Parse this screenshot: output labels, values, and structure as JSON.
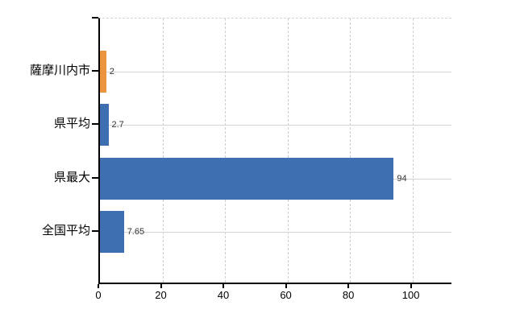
{
  "chart_data": {
    "type": "bar",
    "orientation": "horizontal",
    "title": "",
    "xlabel": "",
    "ylabel": "",
    "categories": [
      "薩摩川内市",
      "県平均",
      "県最大",
      "全国平均"
    ],
    "values": [
      2,
      2.7,
      94,
      7.65
    ],
    "value_labels": [
      "2",
      "2.7",
      "94",
      "7.65"
    ],
    "bar_colors": [
      "#ED9440",
      "#3E6FB0",
      "#3E6FB0",
      "#3E6FB0"
    ],
    "x_ticks": [
      0,
      20,
      40,
      60,
      80,
      100
    ],
    "x_tick_labels": [
      "0",
      "20",
      "40",
      "60",
      "80",
      "100"
    ],
    "xlim": [
      0,
      113
    ],
    "grid": true,
    "legend_position": "none",
    "colors": {
      "axis": "#000000",
      "vertical_grid": "#ccccd4",
      "horizontal_grid": "#cfd6cf",
      "value_label_text": "#333333",
      "category_label_text": "#000000",
      "background": "#ffffff"
    }
  }
}
